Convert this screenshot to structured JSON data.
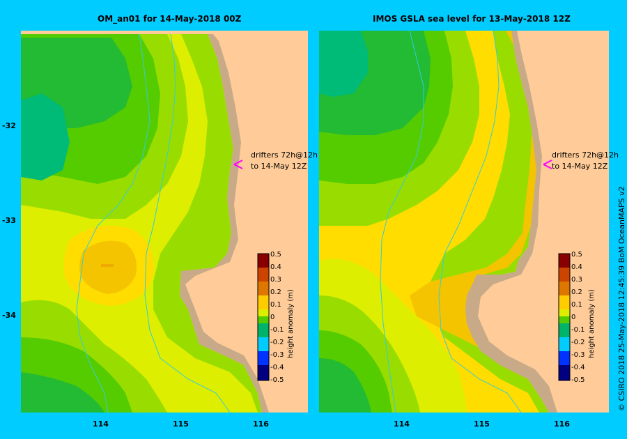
{
  "maps": [
    {
      "title": "OM_an01  for 14-May-2018 00Z",
      "drifter_label_1": "drifters 72h@12h",
      "drifter_label_2": "to 14-May 12Z"
    },
    {
      "title": "IMOS GSLA sea level  for 13-May-2018 12Z",
      "drifter_label_1": "drifters 72h@12h",
      "drifter_label_2": "to 14-May 12Z"
    }
  ],
  "y_ticks": [
    "-32",
    "-33",
    "-34"
  ],
  "x_ticks": [
    "114",
    "115",
    "116"
  ],
  "colorbar": {
    "label": "height anomaly (m)",
    "ticks": [
      "0.5",
      "0.4",
      "0.3",
      "0.2",
      "0.1",
      "0",
      "-0.1",
      "-0.2",
      "-0.3",
      "-0.4",
      "-0.5"
    ],
    "colors": [
      "#000080",
      "#0000cc",
      "#0033ff",
      "#0099ff",
      "#00ccff",
      "#00cc99",
      "#00b36b",
      "#22bb33",
      "#55cc00",
      "#99dd00",
      "#ddee00",
      "#ffdd00",
      "#ffcc00",
      "#f0a000",
      "#dd7700",
      "#cc4400",
      "#aa1100",
      "#880000"
    ]
  },
  "palette": {
    "frame": "#00ccff",
    "land": "#ffcc99",
    "coast": "#c8aa88",
    "c1": "#00bb77",
    "c2": "#22bb33",
    "c3": "#55cc00",
    "c4": "#99dd00",
    "c5": "#ddee00",
    "c6": "#ffdd00",
    "c7": "#f5c400",
    "c8": "#eeaa00",
    "drifter_marker": "#ff00ff",
    "bathy": "#33ccdd"
  },
  "credit": "© CSIRO 2018   25-May-2018 12:45:39 BoM OceanMAPS v2"
}
